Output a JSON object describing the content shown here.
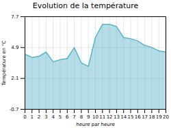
{
  "chart_data": {
    "type": "area",
    "title": "Evolution de la température",
    "xlabel": "heure par heure",
    "ylabel": "Température en °C",
    "x": [
      0,
      1,
      2,
      3,
      4,
      5,
      6,
      7,
      8,
      9,
      10,
      11,
      12,
      13,
      14,
      15,
      16,
      17,
      18,
      19,
      20
    ],
    "values": [
      4.3,
      4.0,
      4.1,
      4.5,
      3.6,
      3.8,
      3.9,
      4.9,
      3.5,
      3.2,
      5.8,
      7.0,
      7.0,
      6.8,
      5.8,
      5.7,
      5.5,
      5.1,
      4.9,
      4.6,
      4.5
    ],
    "color": "#5ab4cc",
    "xlim": [
      0,
      20
    ],
    "xticks": [
      0,
      1,
      2,
      3,
      4,
      5,
      6,
      7,
      8,
      9,
      10,
      11,
      12,
      13,
      14,
      15,
      16,
      17,
      18,
      19,
      20
    ],
    "ylim": [
      -0.7,
      7.7
    ],
    "yticks": [
      -0.7,
      2.1,
      4.9,
      7.7
    ],
    "grid": true
  }
}
